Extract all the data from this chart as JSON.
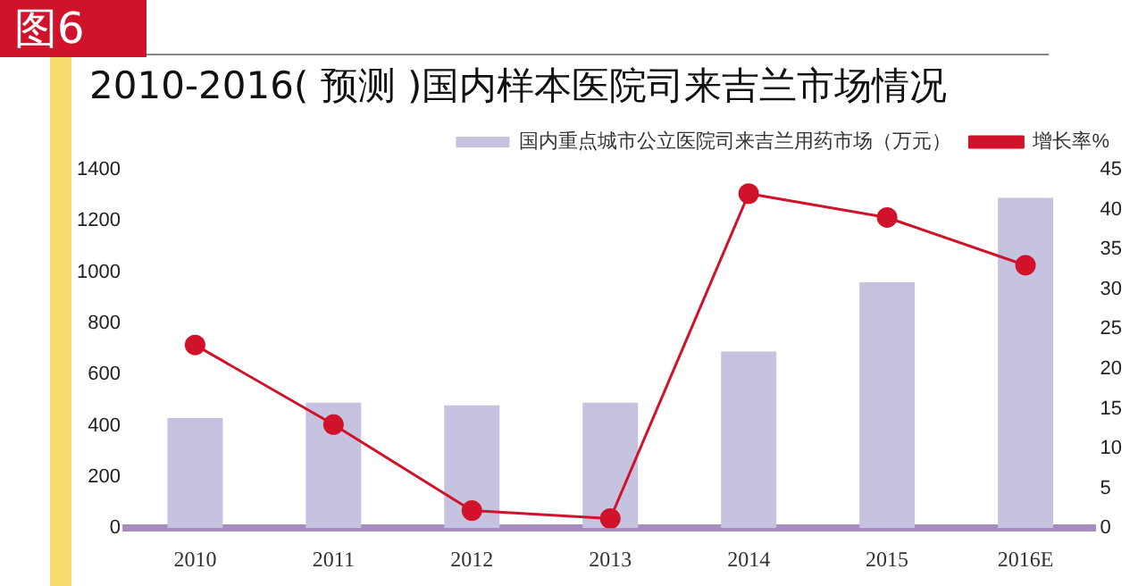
{
  "chart_data": {
    "type": "bar",
    "title": "2010-2016( 预测 )国内样本医院司来吉兰市场情况",
    "annotations": [
      "图6"
    ],
    "categories": [
      "2010",
      "2011",
      "2012",
      "2013",
      "2014",
      "2015",
      "2016E"
    ],
    "series": [
      {
        "name": "国内重点城市公立医院司来吉兰用药市场（万元）",
        "color": "#c5c3e0",
        "values": [
          430,
          490,
          480,
          490,
          690,
          960,
          1290
        ]
      },
      {
        "name": "增长率%",
        "type": "line",
        "axis": "y2",
        "color": "#d0132b",
        "values": [
          23,
          13,
          2.2,
          1.2,
          42,
          39,
          33
        ]
      }
    ],
    "ylim": [
      0,
      1400
    ],
    "yticks": [
      0,
      200,
      400,
      600,
      800,
      1000,
      1200,
      1400
    ],
    "y2lim": [
      0,
      45
    ],
    "y2ticks": [
      0,
      5,
      10,
      15,
      20,
      25,
      30,
      35,
      40,
      45
    ],
    "grid": false,
    "legend": "top",
    "marker": "circle"
  }
}
